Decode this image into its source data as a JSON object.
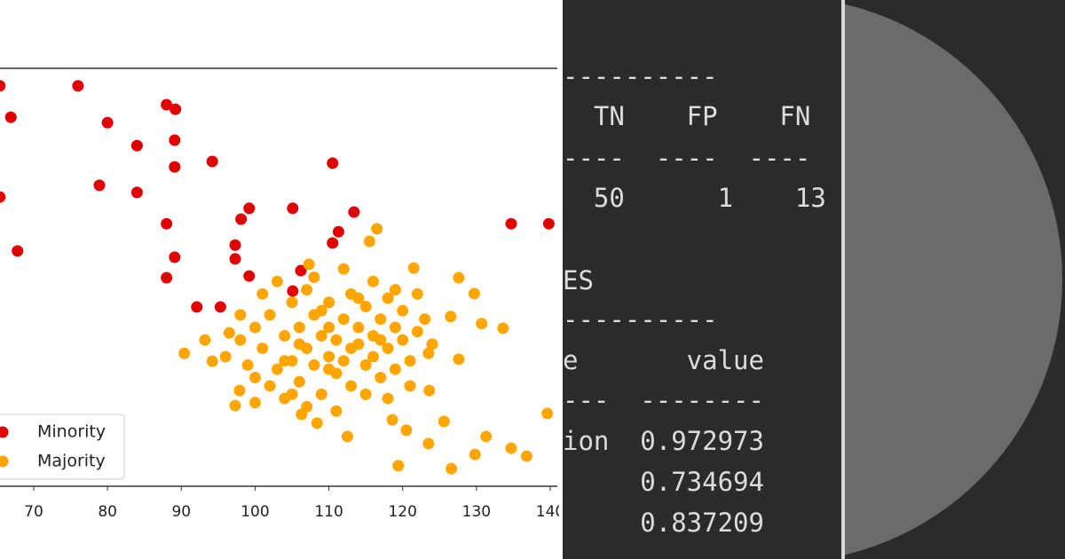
{
  "chart_data": {
    "type": "scatter",
    "xlim": [
      65.43,
      140.96
    ],
    "ylim": [
      0,
      100
    ],
    "xticks": [
      70,
      80,
      90,
      100,
      110,
      120,
      130,
      140
    ],
    "legend": "lower left",
    "series": [
      {
        "name": "Minority",
        "color": "#e00000",
        "x": [
          65.4,
          66.9,
          76.0,
          80.0,
          84.0,
          78.9,
          84.0,
          88.0,
          89.2,
          89.1,
          89.1,
          94.2,
          110.5,
          65.4,
          67.8,
          88.0,
          99.2,
          98.1,
          105.1,
          113.4,
          111.3,
          110.5,
          97.3,
          97.3,
          89.1,
          88.0,
          99.2,
          106.2,
          105.1,
          92.1,
          95.3,
          134.7,
          139.8
        ],
        "values": [
          95.8,
          88.3,
          95.8,
          87.0,
          81.5,
          72.0,
          70.3,
          91.3,
          90.2,
          82.8,
          76.4,
          77.7,
          77.3,
          69.2,
          56.3,
          62.8,
          66.5,
          63.9,
          66.5,
          65.6,
          60.9,
          58.2,
          57.7,
          54.4,
          54.8,
          49.9,
          50.3,
          51.6,
          46.7,
          42.9,
          42.9,
          62.8,
          62.8
        ]
      },
      {
        "name": "Majority",
        "color": "#ffa500",
        "x": [
          116.5,
          115.5,
          107.3,
          121.5,
          127.6,
          129.7,
          90.4,
          94.2,
          97.3,
          112.5,
          119.4,
          126.6,
          129.8,
          134.7,
          136.8,
          139.6,
          131.3,
          125.6,
          123.5,
          120.5,
          108.4,
          106.3,
          133.6,
          130.7,
          126.5,
          127.6,
          123.5,
          123.6,
          118.6,
          97.9,
          93.2,
          96.5,
          100,
          101,
          102,
          103,
          104,
          105,
          105,
          106,
          106,
          107,
          107,
          108,
          108,
          109,
          109,
          110,
          110,
          110,
          111,
          111,
          112,
          112,
          113,
          113,
          114,
          114,
          115,
          115,
          116,
          116,
          117,
          117,
          118,
          118,
          119,
          119,
          120,
          120,
          121,
          122,
          102,
          104,
          99,
          98,
          101,
          103,
          108,
          112,
          116,
          119,
          107,
          111,
          115,
          121,
          123,
          100,
          104,
          109,
          113,
          117,
          106,
          110,
          114,
          98,
          96,
          100,
          105,
          118,
          122,
          124
        ],
        "values": [
          61.6,
          58.6,
          53.1,
          52.2,
          49.9,
          46.1,
          31.8,
          29.9,
          19.3,
          11.9,
          4.9,
          4.2,
          7.6,
          9.1,
          7.2,
          17.4,
          11.9,
          15.5,
          10.2,
          13.4,
          15.1,
          17.2,
          37.8,
          38.9,
          40.6,
          30.4,
          31.8,
          22.9,
          15.9,
          22.9,
          35.0,
          36.7,
          38,
          33,
          41,
          28,
          36,
          44,
          30,
          25,
          38,
          33,
          47,
          29,
          41,
          36,
          22,
          31,
          44,
          38,
          27,
          35,
          40,
          30,
          46,
          24,
          34,
          38,
          29,
          43,
          36,
          31,
          40,
          26,
          45,
          33,
          38,
          28,
          35,
          42,
          30,
          37,
          24,
          21,
          29,
          35,
          46,
          49,
          50,
          52,
          49,
          47,
          19,
          18,
          22,
          24,
          40,
          26,
          30,
          42,
          33,
          35,
          34,
          28,
          45,
          41,
          31,
          20,
          22,
          21,
          46,
          34
        ]
      }
    ]
  },
  "terminal": {
    "lines": [
      "----------",
      "  TN    FP    FN",
      "----  ----  ----",
      "  50      1    13",
      "ES",
      "----------",
      "e       value",
      "---  --------",
      "ion  0.972973",
      "     0.734694",
      "     0.837209"
    ]
  }
}
